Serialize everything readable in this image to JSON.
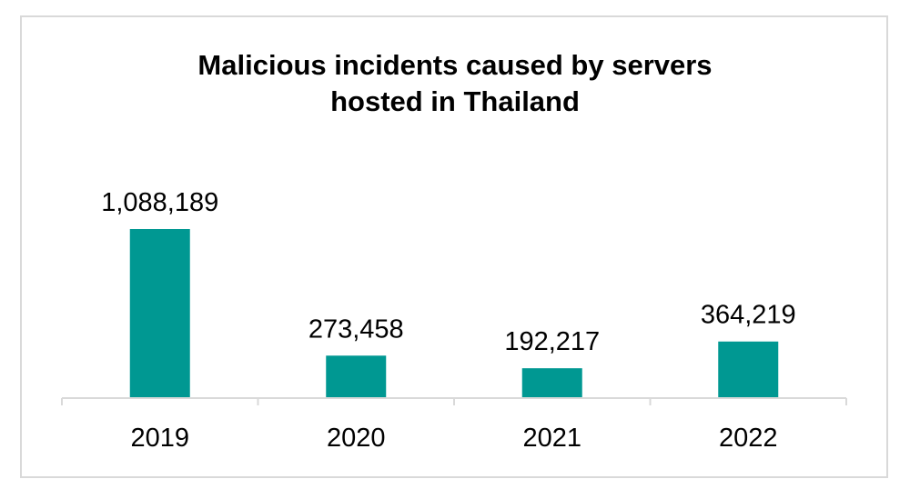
{
  "chart_data": {
    "type": "bar",
    "title_lines": [
      "Malicious incidents caused by servers",
      "hosted in Thailand"
    ],
    "categories": [
      "2019",
      "2020",
      "2021",
      "2022"
    ],
    "values": [
      1088189,
      273458,
      192217,
      364219
    ],
    "data_labels": [
      "1,088,189",
      "273,458",
      "192,217",
      "364,219"
    ],
    "xlabel": "",
    "ylabel": "",
    "ylim": [
      0,
      1100000
    ],
    "grid": false,
    "legend": "none",
    "bar_color": "#009892",
    "axis_color": "#d9d9d9"
  }
}
